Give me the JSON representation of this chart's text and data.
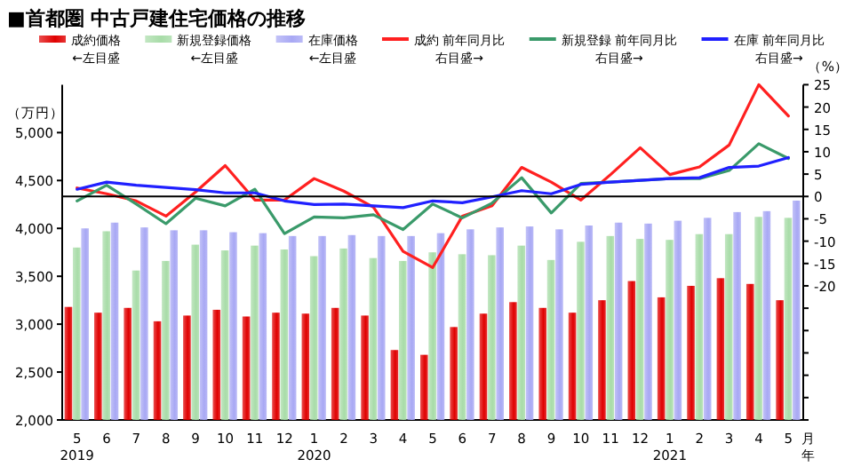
{
  "chart_data": {
    "type": "bar",
    "title": "■首都圏 中古戸建住宅価格の推移",
    "ylabel": "（万円）",
    "y2label": "（%）",
    "xlabel": "月年",
    "categories": [
      "5\n2019",
      "6",
      "7",
      "8",
      "9",
      "10",
      "11",
      "12",
      "1\n2020",
      "2",
      "3",
      "4",
      "5",
      "6",
      "7",
      "8",
      "9",
      "10",
      "11",
      "12",
      "1\n2021",
      "2",
      "3",
      "4",
      "5"
    ],
    "series": [
      {
        "name": "成約価格",
        "color": "#e00000",
        "values": [
          3180,
          3120,
          3170,
          3030,
          3090,
          3150,
          3080,
          3120,
          3110,
          3170,
          3090,
          2730,
          2680,
          2970,
          3110,
          3230,
          3170,
          3120,
          3250,
          3450,
          3280,
          3400,
          3480,
          3420,
          3250
        ]
      },
      {
        "name": "新規登録価格",
        "color": "#a8dca8",
        "values": [
          3800,
          3970,
          3560,
          3660,
          3830,
          3770,
          3820,
          3780,
          3710,
          3790,
          3690,
          3660,
          3750,
          3730,
          3720,
          3820,
          3670,
          3860,
          3920,
          3890,
          3880,
          3940,
          3940,
          4120,
          4110
        ]
      },
      {
        "name": "在庫価格",
        "color": "#a8a8f4",
        "values": [
          4000,
          4060,
          4010,
          3980,
          3980,
          3960,
          3950,
          3920,
          3920,
          3930,
          3920,
          3920,
          3950,
          3990,
          4010,
          4020,
          3990,
          4030,
          4060,
          4050,
          4080,
          4110,
          4170,
          4180,
          4290
        ]
      },
      {
        "name": "成約 前年同月比",
        "type": "line",
        "axis": "y2",
        "color": "#ff2020",
        "values": [
          1.9,
          0.6,
          -1.0,
          -4.4,
          1.0,
          6.9,
          -0.8,
          -0.8,
          4.0,
          1.2,
          -2.4,
          -12.3,
          -15.9,
          -4.4,
          -2.1,
          6.5,
          3.2,
          -0.8,
          4.9,
          10.9,
          4.9,
          6.6,
          11.5,
          25,
          18
        ]
      },
      {
        "name": "新規登録 前年同月比",
        "type": "line",
        "axis": "y2",
        "color": "#3a9a6a",
        "values": [
          -1.0,
          2.5,
          -1.7,
          -6.1,
          -0.4,
          -2.1,
          1.6,
          -8.3,
          -4.6,
          -4.8,
          -4.1,
          -7.4,
          -1.7,
          -4.8,
          -1.5,
          4.2,
          -3.7,
          2.9,
          3.2,
          3.6,
          4.0,
          4.0,
          5.8,
          11.8,
          8.5
        ]
      },
      {
        "name": "在庫 前年同月比",
        "type": "line",
        "axis": "y2",
        "color": "#2020ff",
        "values": [
          1.6,
          3.2,
          2.5,
          2.0,
          1.5,
          0.8,
          0.8,
          -1.0,
          -1.8,
          -1.7,
          -2.1,
          -2.5,
          -1.0,
          -1.4,
          -0.1,
          1.3,
          0.6,
          2.7,
          3.2,
          3.6,
          4.0,
          4.2,
          6.5,
          6.8,
          8.7
        ]
      }
    ],
    "ylim": [
      2000,
      5500
    ],
    "yticks": [
      {
        "value": 2000,
        "label": "2,000"
      },
      {
        "value": 2500,
        "label": "2,500"
      },
      {
        "value": 3000,
        "label": "3,000"
      },
      {
        "value": 3500,
        "label": "3,500"
      },
      {
        "value": 4000,
        "label": "4,000"
      },
      {
        "value": 4500,
        "label": "4,500"
      },
      {
        "value": 5000,
        "label": "5,000"
      }
    ],
    "y2lim": [
      -50,
      25
    ],
    "y2ticks": [
      25,
      20,
      15,
      10,
      5,
      0,
      -5,
      -10,
      -15,
      -20,
      {
        "value": -25,
        "label": null
      },
      {
        "value": -30,
        "label": null
      },
      {
        "value": -35,
        "label": null
      },
      {
        "value": -40,
        "label": null
      },
      {
        "value": -45,
        "label": null
      },
      {
        "value": -50,
        "label": null
      }
    ],
    "ref_lines": [
      {
        "axis": "y2",
        "value": 0,
        "color": "#000000"
      }
    ],
    "annotations": [
      "←左目盛",
      "←左目盛",
      "←左目盛",
      "右目盛→",
      "右目盛→",
      "右目盛→"
    ],
    "legend": "top"
  }
}
